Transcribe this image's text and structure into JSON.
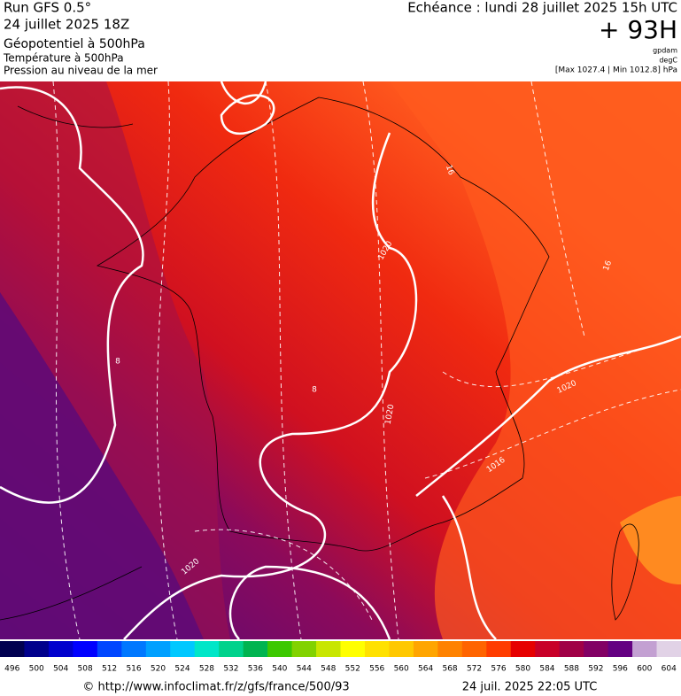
{
  "header": {
    "run": "Run GFS 0.5°",
    "run_date": "24 juillet 2025 18Z",
    "param1": "Géopotentiel à 500hPa",
    "param2": "Température à 500hPa",
    "param3": "Pression au niveau de la mer",
    "valid": "Echéance : lundi 28 juillet 2025 15h UTC",
    "lead": "+ 93H",
    "unit1": "gpdam",
    "unit2": "degC",
    "unit3": "[Max 1027.4 | Min 1012.8] hPa"
  },
  "map": {
    "contour_labels": [
      "1020",
      "1020",
      "1020",
      "1016",
      "1020",
      "16",
      "16",
      "8",
      "8"
    ]
  },
  "colorbar": {
    "labels": [
      496,
      500,
      504,
      508,
      512,
      516,
      520,
      524,
      528,
      532,
      536,
      540,
      544,
      548,
      552,
      556,
      560,
      564,
      568,
      572,
      576,
      580,
      584,
      588,
      592,
      596,
      600,
      604
    ],
    "colors": [
      "#000050",
      "#00008c",
      "#0000cd",
      "#0000ff",
      "#0046ff",
      "#0078ff",
      "#00a0ff",
      "#00c8ff",
      "#00e6c8",
      "#00d28c",
      "#00b450",
      "#3cc800",
      "#82d200",
      "#c8e600",
      "#ffff00",
      "#ffe100",
      "#ffc800",
      "#ffa500",
      "#ff8200",
      "#ff6400",
      "#ff3c00",
      "#e60000",
      "#c80028",
      "#a00046",
      "#820064",
      "#640082",
      "#c3a0d2",
      "#e1d2e6"
    ]
  },
  "footer": {
    "source": "© http://www.infoclimat.fr/z/gfs/france/500/93",
    "generated": "24 juil. 2025 22:05 UTC"
  }
}
